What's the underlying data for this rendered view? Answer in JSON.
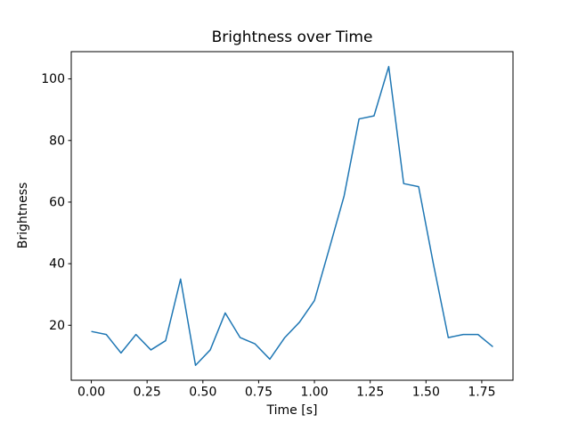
{
  "chart_data": {
    "type": "line",
    "title": "Brightness over Time",
    "xlabel": "Time [s]",
    "ylabel": "Brightness",
    "line_color": "#1f77b4",
    "grid": false,
    "legend": null,
    "xlim": [
      -0.09,
      1.89
    ],
    "ylim": [
      2.15,
      108.85
    ],
    "xtick_values": [
      0.0,
      0.25,
      0.5,
      0.75,
      1.0,
      1.25,
      1.5,
      1.75
    ],
    "xtick_labels": [
      "0.00",
      "0.25",
      "0.50",
      "0.75",
      "1.00",
      "1.25",
      "1.50",
      "1.75"
    ],
    "ytick_values": [
      20,
      40,
      60,
      80,
      100
    ],
    "ytick_labels": [
      "20",
      "40",
      "60",
      "80",
      "100"
    ],
    "x": [
      0.0,
      0.067,
      0.133,
      0.2,
      0.267,
      0.333,
      0.4,
      0.467,
      0.533,
      0.6,
      0.667,
      0.733,
      0.8,
      0.867,
      0.933,
      1.0,
      1.067,
      1.133,
      1.2,
      1.267,
      1.333,
      1.4,
      1.467,
      1.533,
      1.6,
      1.667,
      1.733,
      1.8
    ],
    "y": [
      18,
      17,
      11,
      17,
      12,
      15,
      35,
      7,
      12,
      24,
      16,
      14,
      9,
      16,
      21,
      28,
      45,
      62,
      87,
      88,
      104,
      66,
      65,
      40,
      16,
      17,
      17,
      13
    ]
  }
}
